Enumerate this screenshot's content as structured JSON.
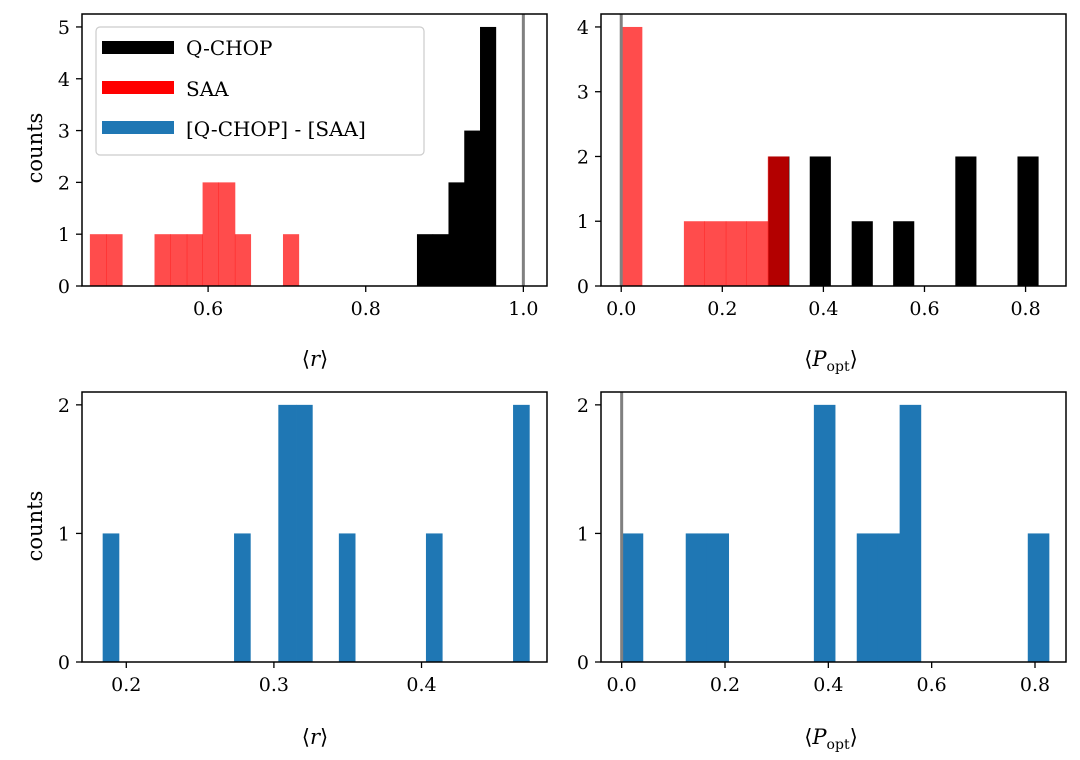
{
  "chart_data": [
    {
      "type": "histogram",
      "panel": "top-left",
      "xlabel": "⟨r⟩",
      "ylabel": "counts",
      "xlim": [
        0.44,
        1.03
      ],
      "ylim": [
        0,
        5.25
      ],
      "xticks": [
        0.6,
        0.8,
        1.0
      ],
      "xtick_labels": [
        "0.6",
        "0.8",
        "1.0"
      ],
      "yticks": [
        0,
        1,
        2,
        3,
        4,
        5
      ],
      "ytick_labels": [
        "0",
        "1",
        "2",
        "3",
        "4",
        "5"
      ],
      "vlines": [
        {
          "x": 1.0,
          "color": "#808080"
        }
      ],
      "series": [
        {
          "name": "Q-CHOP",
          "color": "#000000",
          "alpha": 1,
          "bins": [
            {
              "x0": 0.865,
              "x1": 0.885,
              "count": 1
            },
            {
              "x0": 0.885,
              "x1": 0.905,
              "count": 1
            },
            {
              "x0": 0.905,
              "x1": 0.925,
              "count": 2
            },
            {
              "x0": 0.925,
              "x1": 0.945,
              "count": 3
            },
            {
              "x0": 0.945,
              "x1": 0.965,
              "count": 5
            }
          ]
        },
        {
          "name": "SAA",
          "color": "#ff0000",
          "alpha": 0.7,
          "bins": [
            {
              "x0": 0.45,
              "x1": 0.471,
              "count": 1
            },
            {
              "x0": 0.471,
              "x1": 0.491,
              "count": 1
            },
            {
              "x0": 0.532,
              "x1": 0.552,
              "count": 1
            },
            {
              "x0": 0.552,
              "x1": 0.573,
              "count": 1
            },
            {
              "x0": 0.573,
              "x1": 0.593,
              "count": 1
            },
            {
              "x0": 0.593,
              "x1": 0.613,
              "count": 2
            },
            {
              "x0": 0.613,
              "x1": 0.634,
              "count": 2
            },
            {
              "x0": 0.634,
              "x1": 0.654,
              "count": 1
            },
            {
              "x0": 0.695,
              "x1": 0.715,
              "count": 1
            }
          ]
        }
      ]
    },
    {
      "type": "histogram",
      "panel": "top-right",
      "xlabel": "⟨P_opt⟩",
      "ylabel": "",
      "xlim": [
        -0.04,
        0.88
      ],
      "ylim": [
        0,
        4.2
      ],
      "xticks": [
        0.0,
        0.2,
        0.4,
        0.6,
        0.8
      ],
      "xtick_labels": [
        "0.0",
        "0.2",
        "0.4",
        "0.6",
        "0.8"
      ],
      "yticks": [
        0,
        1,
        2,
        3,
        4
      ],
      "ytick_labels": [
        "0",
        "1",
        "2",
        "3",
        "4"
      ],
      "vlines": [
        {
          "x": 0.0,
          "color": "#808080"
        }
      ],
      "series": [
        {
          "name": "Q-CHOP",
          "color": "#000000",
          "alpha": 1,
          "bins": [
            {
              "x0": 0.291,
              "x1": 0.332,
              "count": 2
            },
            {
              "x0": 0.373,
              "x1": 0.414,
              "count": 2
            },
            {
              "x0": 0.456,
              "x1": 0.497,
              "count": 1
            },
            {
              "x0": 0.538,
              "x1": 0.579,
              "count": 1
            },
            {
              "x0": 0.661,
              "x1": 0.702,
              "count": 2
            },
            {
              "x0": 0.784,
              "x1": 0.825,
              "count": 2
            }
          ]
        },
        {
          "name": "SAA",
          "color": "#ff0000",
          "alpha": 0.7,
          "bins": [
            {
              "x0": 0.0,
              "x1": 0.041,
              "count": 4
            },
            {
              "x0": 0.124,
              "x1": 0.165,
              "count": 1
            },
            {
              "x0": 0.165,
              "x1": 0.207,
              "count": 1
            },
            {
              "x0": 0.207,
              "x1": 0.248,
              "count": 1
            },
            {
              "x0": 0.248,
              "x1": 0.29,
              "count": 1
            },
            {
              "x0": 0.29,
              "x1": 0.331,
              "count": 2
            }
          ]
        }
      ]
    },
    {
      "type": "histogram",
      "panel": "bottom-left",
      "xlabel": "⟨r⟩",
      "ylabel": "counts",
      "xlim": [
        0.17,
        0.485
      ],
      "ylim": [
        0,
        2.1
      ],
      "xticks": [
        0.2,
        0.3,
        0.4
      ],
      "xtick_labels": [
        "0.2",
        "0.3",
        "0.4"
      ],
      "yticks": [
        0,
        1,
        2
      ],
      "ytick_labels": [
        "0",
        "1",
        "2"
      ],
      "vlines": [],
      "series": [
        {
          "name": "[Q-CHOP] - [SAA]",
          "color": "#1f77b4",
          "alpha": 1,
          "bins": [
            {
              "x0": 0.184,
              "x1": 0.195,
              "count": 1
            },
            {
              "x0": 0.273,
              "x1": 0.284,
              "count": 1
            },
            {
              "x0": 0.303,
              "x1": 0.315,
              "count": 2
            },
            {
              "x0": 0.315,
              "x1": 0.326,
              "count": 2
            },
            {
              "x0": 0.344,
              "x1": 0.355,
              "count": 1
            },
            {
              "x0": 0.403,
              "x1": 0.414,
              "count": 1
            },
            {
              "x0": 0.462,
              "x1": 0.473,
              "count": 2
            }
          ]
        }
      ]
    },
    {
      "type": "histogram",
      "panel": "bottom-right",
      "xlabel": "⟨P_opt⟩",
      "ylabel": "",
      "xlim": [
        -0.04,
        0.86
      ],
      "ylim": [
        0,
        2.1
      ],
      "xticks": [
        0.0,
        0.2,
        0.4,
        0.6,
        0.8
      ],
      "xtick_labels": [
        "0.0",
        "0.2",
        "0.4",
        "0.6",
        "0.8"
      ],
      "yticks": [
        0,
        1,
        2
      ],
      "ytick_labels": [
        "0",
        "1",
        "2"
      ],
      "vlines": [
        {
          "x": 0.0,
          "color": "#808080"
        }
      ],
      "series": [
        {
          "name": "[Q-CHOP] - [SAA]",
          "color": "#1f77b4",
          "alpha": 1,
          "bins": [
            {
              "x0": 0.0,
              "x1": 0.041,
              "count": 1
            },
            {
              "x0": 0.124,
              "x1": 0.165,
              "count": 1
            },
            {
              "x0": 0.165,
              "x1": 0.207,
              "count": 1
            },
            {
              "x0": 0.372,
              "x1": 0.413,
              "count": 2
            },
            {
              "x0": 0.455,
              "x1": 0.496,
              "count": 1
            },
            {
              "x0": 0.496,
              "x1": 0.538,
              "count": 1
            },
            {
              "x0": 0.538,
              "x1": 0.579,
              "count": 2
            },
            {
              "x0": 0.786,
              "x1": 0.827,
              "count": 1
            }
          ]
        }
      ]
    }
  ],
  "legend": {
    "location": "upper-left",
    "items": [
      {
        "label": "Q-CHOP",
        "color": "#000000"
      },
      {
        "label": "SAA",
        "color": "#ff0000"
      },
      {
        "label": "[Q-CHOP] - [SAA]",
        "color": "#1f77b4"
      }
    ]
  },
  "labels": {
    "counts": "counts",
    "r_open": "⟨",
    "r_var": "r",
    "r_close": "⟩",
    "p_var": "P",
    "p_sub": "opt"
  }
}
